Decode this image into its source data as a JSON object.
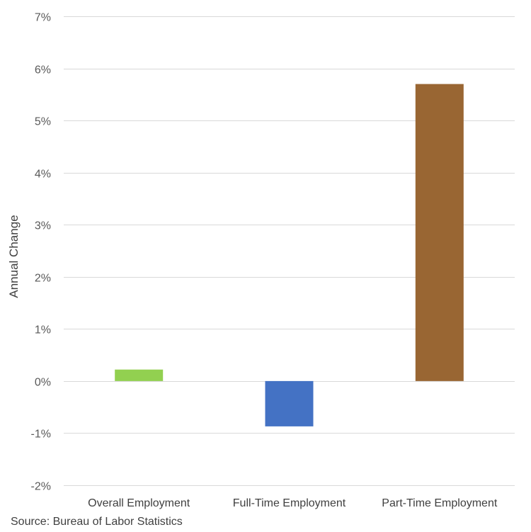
{
  "chart_data": {
    "type": "bar",
    "categories": [
      "Overall Employment",
      "Full-Time Employment",
      "Part-Time Employment"
    ],
    "values": [
      0.22,
      -0.87,
      5.7
    ],
    "colors": [
      "#92d050",
      "#4472c4",
      "#996633"
    ],
    "ylabel": "Annual Change",
    "xlabel": "",
    "ylim": [
      -2,
      7
    ],
    "yticks": [
      -2,
      -1,
      0,
      1,
      2,
      3,
      4,
      5,
      6,
      7
    ],
    "ytick_labels": [
      "-2%",
      "-1%",
      "0%",
      "1%",
      "2%",
      "3%",
      "4%",
      "5%",
      "6%",
      "7%"
    ],
    "grid": true,
    "gridline_color": "#d9d9d9"
  },
  "source_note": "Source: Bureau of Labor Statistics"
}
